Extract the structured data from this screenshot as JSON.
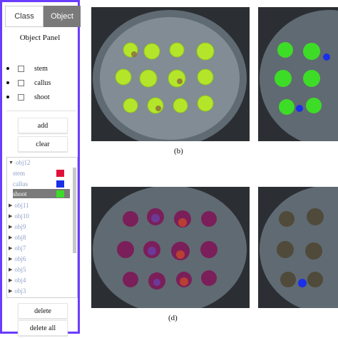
{
  "panel": {
    "tabs": [
      {
        "label": "Class",
        "active": false
      },
      {
        "label": "Object",
        "active": true
      }
    ],
    "title": "Object Panel",
    "classes": [
      {
        "label": "stem",
        "checked": false
      },
      {
        "label": "callus",
        "checked": false
      },
      {
        "label": "shoot",
        "checked": false
      }
    ],
    "add_label": "add",
    "clear_label": "clear",
    "tree": {
      "expanded": {
        "label": "obj12",
        "children": [
          {
            "label": "stem",
            "color": "#e0103a",
            "selected": false
          },
          {
            "label": "callus",
            "color": "#1a2fe8",
            "selected": false
          },
          {
            "label": "shoot",
            "color": "#3ddc27",
            "selected": true
          }
        ]
      },
      "collapsed": [
        "obj11",
        "obj10",
        "obj9",
        "obj8",
        "obj7",
        "obj6",
        "obj5",
        "obj4",
        "obj3"
      ]
    },
    "delete_label": "delete",
    "delete_all_label": "delete all"
  },
  "captions": {
    "b": "(b)",
    "d": "(d)"
  },
  "colors": {
    "accent": "#6a3cff",
    "selected": "#7a7a7a"
  }
}
